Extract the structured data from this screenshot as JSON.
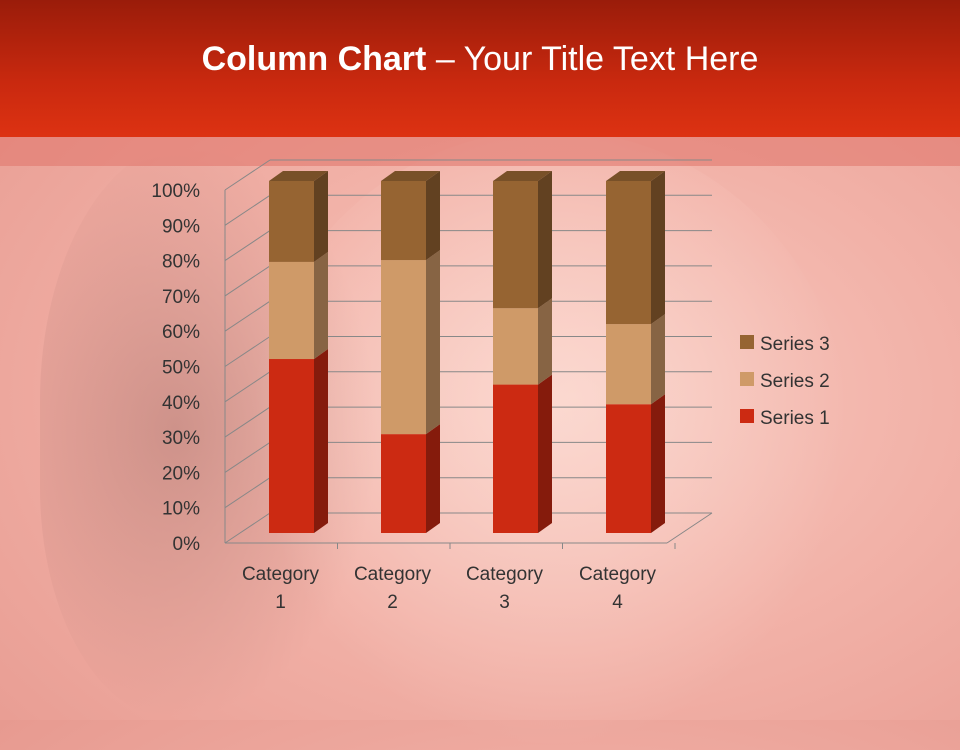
{
  "slide": {
    "title_bold": "Column Chart",
    "title_rest": " – Your Title Text Here"
  },
  "chart_data": {
    "type": "bar",
    "stacking": "percent",
    "3d": true,
    "categories": [
      "Category 1",
      "Category 2",
      "Category 3",
      "Category 4"
    ],
    "series": [
      {
        "name": "Series 1",
        "values": [
          4.3,
          2.5,
          3.5,
          4.5
        ],
        "color": "#cc2a12"
      },
      {
        "name": "Series 2",
        "values": [
          2.4,
          4.4,
          1.8,
          2.8
        ],
        "color": "#cf9a68"
      },
      {
        "name": "Series 3",
        "values": [
          2,
          2,
          3,
          5
        ],
        "color": "#966432"
      }
    ],
    "yticks": [
      "0%",
      "10%",
      "20%",
      "30%",
      "40%",
      "50%",
      "60%",
      "70%",
      "80%",
      "90%",
      "100%"
    ],
    "ylim": [
      0,
      100
    ],
    "grid": true,
    "legend": "right"
  }
}
